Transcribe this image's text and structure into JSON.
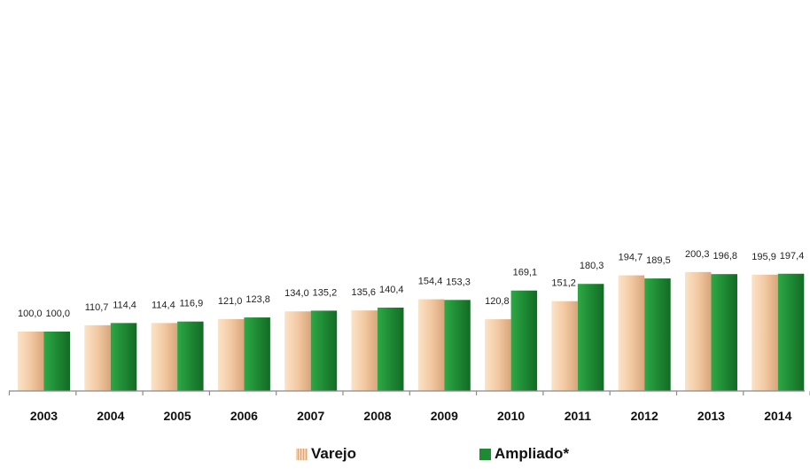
{
  "chart_data": {
    "type": "bar",
    "categories": [
      "2003",
      "2004",
      "2005",
      "2006",
      "2007",
      "2008",
      "2009",
      "2010",
      "2011",
      "2012",
      "2013",
      "2014"
    ],
    "series": [
      {
        "name": "Varejo",
        "color": "#f0c7a0",
        "values": [
          100.0,
          110.7,
          114.4,
          121.0,
          134.0,
          135.6,
          154.4,
          120.8,
          151.2,
          194.7,
          200.3,
          195.9
        ],
        "labels": [
          "100,0",
          "110,7",
          "114,4",
          "121,0",
          "134,0",
          "135,6",
          "154,4",
          "120,8",
          "151,2",
          "194,7",
          "200,3",
          "195,9"
        ]
      },
      {
        "name": "Ampliado*",
        "color": "#1e8a34",
        "values": [
          100.0,
          114.4,
          116.9,
          123.8,
          135.2,
          140.4,
          153.3,
          169.1,
          180.3,
          189.5,
          196.8,
          197.4
        ],
        "labels": [
          "100,0",
          "114,4",
          "116,9",
          "123,8",
          "135,2",
          "140,4",
          "153,3",
          "169,1",
          "180,3",
          "189,5",
          "196,8",
          "197,4"
        ]
      }
    ],
    "title": "",
    "xlabel": "",
    "ylabel": "",
    "ylim": [
      80,
      205
    ],
    "grid": false,
    "legend_position": "bottom"
  },
  "legend": {
    "varejo_label": "Varejo",
    "ampliado_label": "Ampliado*"
  }
}
